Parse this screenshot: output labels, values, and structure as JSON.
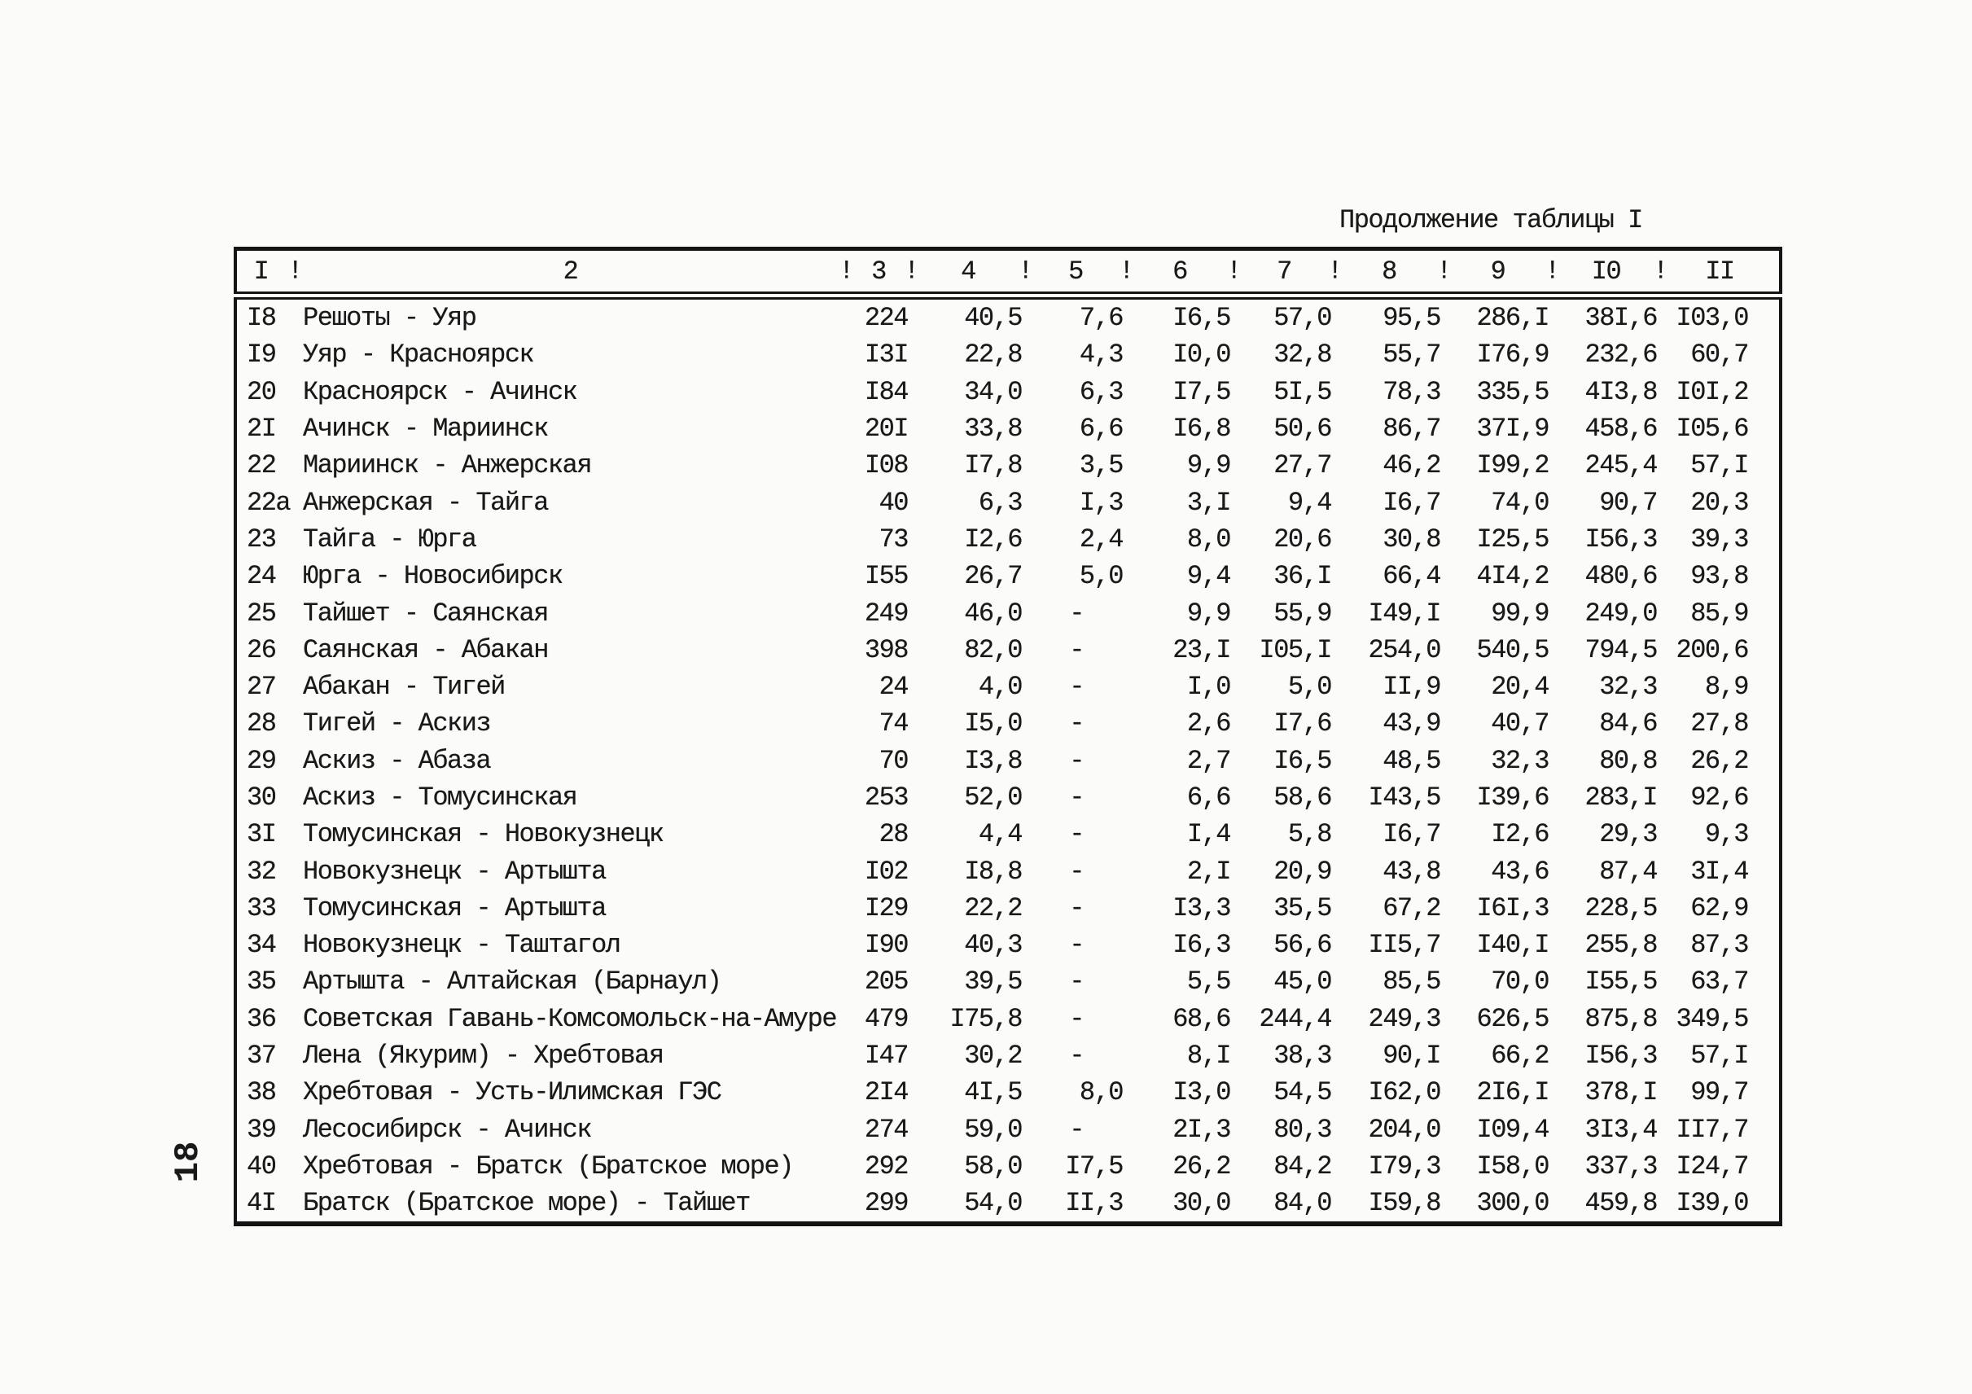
{
  "page": {
    "number": "18"
  },
  "title": "Продолжение таблицы I",
  "table": {
    "header": {
      "separator": "!",
      "labels": [
        "I",
        "2",
        "3",
        "4",
        "5",
        "6",
        "7",
        "8",
        "9",
        "I0",
        "II"
      ]
    },
    "rows": [
      {
        "num": "I8",
        "name": "Решоты - Уяр",
        "values": [
          "224",
          "40,5",
          "7,6",
          "I6,5",
          "57,0",
          "95,5",
          "286,I",
          "38I,6",
          "I03,0"
        ]
      },
      {
        "num": "I9",
        "name": "Уяр - Красноярск",
        "values": [
          "I3I",
          "22,8",
          "4,3",
          "I0,0",
          "32,8",
          "55,7",
          "I76,9",
          "232,6",
          "60,7"
        ]
      },
      {
        "num": "20",
        "name": "Красноярск - Ачинск",
        "values": [
          "I84",
          "34,0",
          "6,3",
          "I7,5",
          "5I,5",
          "78,3",
          "335,5",
          "4I3,8",
          "I0I,2"
        ]
      },
      {
        "num": "2I",
        "name": "Ачинск - Мариинск",
        "values": [
          "20I",
          "33,8",
          "6,6",
          "I6,8",
          "50,6",
          "86,7",
          "37I,9",
          "458,6",
          "I05,6"
        ]
      },
      {
        "num": "22",
        "name": "Мариинск - Анжерская",
        "values": [
          "I08",
          "I7,8",
          "3,5",
          "9,9",
          "27,7",
          "46,2",
          "I99,2",
          "245,4",
          "57,I"
        ]
      },
      {
        "num": "22а",
        "name": "Анжерская - Тайга",
        "values": [
          "40",
          "6,3",
          "I,3",
          "3,I",
          "9,4",
          "I6,7",
          "74,0",
          "90,7",
          "20,3"
        ]
      },
      {
        "num": "23",
        "name": "Тайга - Юрга",
        "values": [
          "73",
          "I2,6",
          "2,4",
          "8,0",
          "20,6",
          "30,8",
          "I25,5",
          "I56,3",
          "39,3"
        ]
      },
      {
        "num": "24",
        "name": "Юрга - Новосибирск",
        "values": [
          "I55",
          "26,7",
          "5,0",
          "9,4",
          "36,I",
          "66,4",
          "4I4,2",
          "480,6",
          "93,8"
        ]
      },
      {
        "num": "25",
        "name": "Тайшет - Саянская",
        "values": [
          "249",
          "46,0",
          "-",
          "9,9",
          "55,9",
          "I49,I",
          "99,9",
          "249,0",
          "85,9"
        ]
      },
      {
        "num": "26",
        "name": "Саянская - Абакан",
        "values": [
          "398",
          "82,0",
          "-",
          "23,I",
          "I05,I",
          "254,0",
          "540,5",
          "794,5",
          "200,6"
        ]
      },
      {
        "num": "27",
        "name": "Абакан - Тигей",
        "values": [
          "24",
          "4,0",
          "-",
          "I,0",
          "5,0",
          "II,9",
          "20,4",
          "32,3",
          "8,9"
        ]
      },
      {
        "num": "28",
        "name": "Тигей - Аскиз",
        "values": [
          "74",
          "I5,0",
          "-",
          "2,6",
          "I7,6",
          "43,9",
          "40,7",
          "84,6",
          "27,8"
        ]
      },
      {
        "num": "29",
        "name": "Аскиз - Абаза",
        "values": [
          "70",
          "I3,8",
          "-",
          "2,7",
          "I6,5",
          "48,5",
          "32,3",
          "80,8",
          "26,2"
        ]
      },
      {
        "num": "30",
        "name": "Аскиз - Томусинская",
        "values": [
          "253",
          "52,0",
          "-",
          "6,6",
          "58,6",
          "I43,5",
          "I39,6",
          "283,I",
          "92,6"
        ]
      },
      {
        "num": "3I",
        "name": "Томусинская - Новокузнецк",
        "values": [
          "28",
          "4,4",
          "-",
          "I,4",
          "5,8",
          "I6,7",
          "I2,6",
          "29,3",
          "9,3"
        ]
      },
      {
        "num": "32",
        "name": "Новокузнецк - Артышта",
        "values": [
          "I02",
          "I8,8",
          "-",
          "2,I",
          "20,9",
          "43,8",
          "43,6",
          "87,4",
          "3I,4"
        ]
      },
      {
        "num": "33",
        "name": "Томусинская - Артышта",
        "values": [
          "I29",
          "22,2",
          "-",
          "I3,3",
          "35,5",
          "67,2",
          "I6I,3",
          "228,5",
          "62,9"
        ]
      },
      {
        "num": "34",
        "name": "Новокузнецк - Таштагол",
        "values": [
          "I90",
          "40,3",
          "-",
          "I6,3",
          "56,6",
          "II5,7",
          "I40,I",
          "255,8",
          "87,3"
        ]
      },
      {
        "num": "35",
        "name": "Артышта - Алтайская (Барнаул)",
        "values": [
          "205",
          "39,5",
          "-",
          "5,5",
          "45,0",
          "85,5",
          "70,0",
          "I55,5",
          "63,7"
        ]
      },
      {
        "num": "36",
        "name": "Советская Гавань-Комсомольск-на-Амуре",
        "values": [
          "479",
          "I75,8",
          "-",
          "68,6",
          "244,4",
          "249,3",
          "626,5",
          "875,8",
          "349,5"
        ]
      },
      {
        "num": "37",
        "name": "Лена (Якурим) - Хребтовая",
        "values": [
          "I47",
          "30,2",
          "-",
          "8,I",
          "38,3",
          "90,I",
          "66,2",
          "I56,3",
          "57,I"
        ]
      },
      {
        "num": "38",
        "name": "Хребтовая - Усть-Илимская ГЭС",
        "values": [
          "2I4",
          "4I,5",
          "8,0",
          "I3,0",
          "54,5",
          "I62,0",
          "2I6,I",
          "378,I",
          "99,7"
        ]
      },
      {
        "num": "39",
        "name": "Лесосибирск - Ачинск",
        "values": [
          "274",
          "59,0",
          "-",
          "2I,3",
          "80,3",
          "204,0",
          "I09,4",
          "3I3,4",
          "II7,7"
        ]
      },
      {
        "num": "40",
        "name": "Хребтовая - Братск (Братское море)",
        "values": [
          "292",
          "58,0",
          "I7,5",
          "26,2",
          "84,2",
          "I79,3",
          "I58,0",
          "337,3",
          "I24,7"
        ]
      },
      {
        "num": "4I",
        "name": "Братск (Братское море) - Тайшет",
        "values": [
          "299",
          "54,0",
          "II,3",
          "30,0",
          "84,0",
          "I59,8",
          "300,0",
          "459,8",
          "I39,0"
        ]
      }
    ]
  }
}
